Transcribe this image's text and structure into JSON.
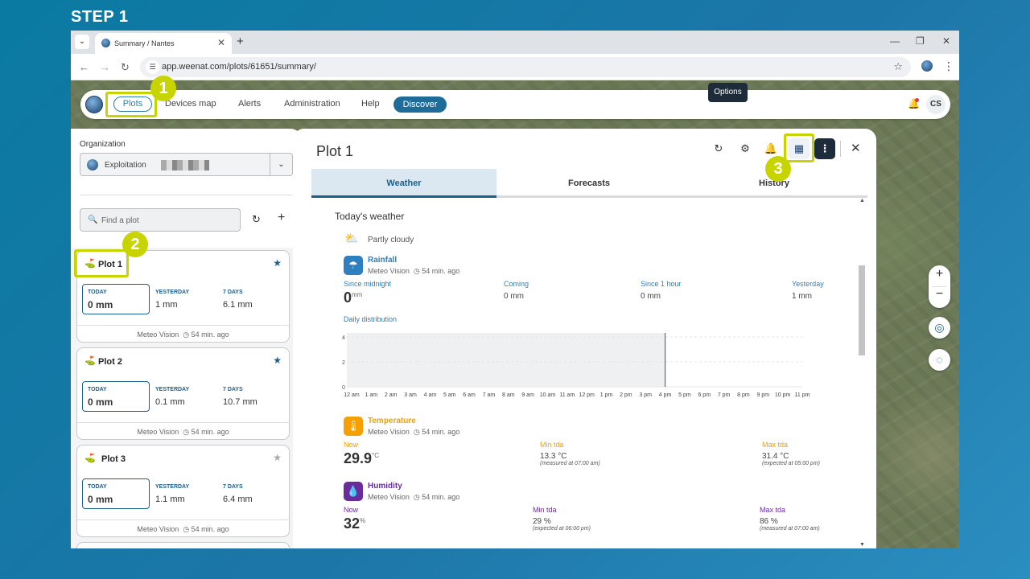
{
  "step_label": "STEP 1",
  "browser": {
    "tab_title": "Summary / Nantes",
    "url": "app.weenat.com/plots/61651/summary/"
  },
  "topnav": {
    "items": [
      "Plots",
      "Devices map",
      "Alerts",
      "Administration",
      "Help"
    ],
    "discover": "Discover",
    "avatar": "CS"
  },
  "sidebar": {
    "org_label": "Organization",
    "org_name": "Exploitation",
    "search_placeholder": "Find a plot",
    "plots": [
      {
        "name": "Plot 1",
        "favorite": true,
        "today_label": "TODAY",
        "today": "0 mm",
        "yesterday_label": "YESTERDAY",
        "yesterday": "1 mm",
        "week_label": "7 DAYS",
        "week": "6.1 mm",
        "source": "Meteo Vision",
        "age": "54 min. ago"
      },
      {
        "name": "Plot 2",
        "favorite": true,
        "today_label": "TODAY",
        "today": "0 mm",
        "yesterday_label": "YESTERDAY",
        "yesterday": "0.1 mm",
        "week_label": "7 DAYS",
        "week": "10.7 mm",
        "source": "Meteo Vision",
        "age": "54 min. ago"
      },
      {
        "name": "Plot 3",
        "favorite": false,
        "today_label": "TODAY",
        "today": "0 mm",
        "yesterday_label": "YESTERDAY",
        "yesterday": "1.1 mm",
        "week_label": "7 DAYS",
        "week": "6.4 mm",
        "source": "Meteo Vision",
        "age": "54 min. ago"
      }
    ]
  },
  "panel": {
    "title": "Plot 1",
    "tooltip": "Options",
    "tabs": [
      "Weather",
      "Forecasts",
      "History"
    ],
    "section_title": "Today's weather",
    "condition": "Partly cloudy",
    "rainfall": {
      "title": "Rainfall",
      "source": "Meteo Vision",
      "age": "54 min. ago",
      "metrics": [
        {
          "label": "Since midnight",
          "value": "0",
          "unit": "mm"
        },
        {
          "label": "Coming",
          "value": "0 mm"
        },
        {
          "label": "Since 1 hour",
          "value": "0 mm"
        },
        {
          "label": "Yesterday",
          "value": "1 mm"
        }
      ],
      "distribution_label": "Daily distribution"
    },
    "temperature": {
      "title": "Temperature",
      "source": "Meteo Vision",
      "age": "54 min. ago",
      "now_label": "Now",
      "now": "29.9",
      "now_unit": "°C",
      "min_label": "Min tda",
      "min": "13.3 °C",
      "min_note": "(measured at 07:00 am)",
      "max_label": "Max tda",
      "max": "31.4 °C",
      "max_note": "(expected at 05:00 pm)"
    },
    "humidity": {
      "title": "Humidity",
      "source": "Meteo Vision",
      "age": "54 min. ago",
      "now_label": "Now",
      "now": "32",
      "now_unit": "%",
      "min_label": "Min tda",
      "min": "29 %",
      "min_note": "(expected at 06:00 pm)",
      "max_label": "Max tda",
      "max": "86 %",
      "max_note": "(measured at 07:00 am)"
    }
  },
  "chart_data": {
    "type": "bar",
    "categories": [
      "12 am",
      "1 am",
      "2 am",
      "3 am",
      "4 am",
      "5 am",
      "6 am",
      "7 am",
      "8 am",
      "9 am",
      "10 am",
      "11 am",
      "12 pm",
      "1 pm",
      "2 pm",
      "3 pm",
      "4 pm",
      "5 pm",
      "6 pm",
      "7 pm",
      "8 pm",
      "9 pm",
      "10 pm",
      "11 pm"
    ],
    "values": [
      0,
      0,
      0,
      0,
      0,
      0,
      0,
      0,
      0,
      0,
      0,
      0,
      0,
      0,
      0,
      0,
      0,
      0,
      0,
      0,
      0,
      0,
      0,
      0
    ],
    "yticks": [
      0,
      2,
      4
    ],
    "ylim": [
      0,
      4
    ],
    "current_hour": "4 pm"
  },
  "annotations": {
    "badge1": "1",
    "badge2": "2",
    "badge3": "3"
  },
  "colors": {
    "accent": "#1d5f8a",
    "highlight": "#c8d400",
    "temperature": "#f5a000",
    "humidity": "#6a2c9a",
    "rainfall": "#2d7fbf"
  }
}
